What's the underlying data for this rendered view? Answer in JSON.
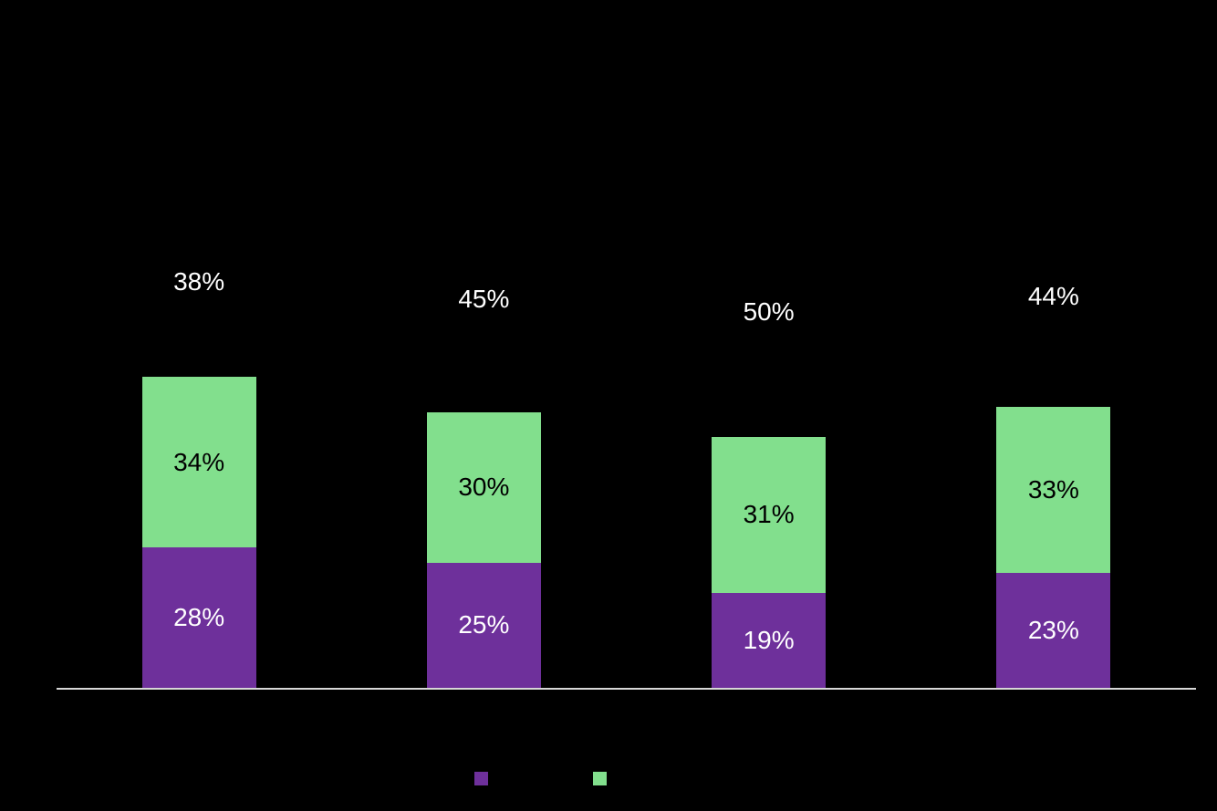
{
  "canvas": {
    "background_color": "#000000"
  },
  "chart_data": {
    "type": "bar",
    "subtype": "stacked-100-percent-column",
    "title": "",
    "xlabel": "",
    "ylabel": "",
    "categories": [
      "",
      "",
      "",
      ""
    ],
    "series": [
      {
        "name": "series-1-purple",
        "color": "#6E309B",
        "label_color": "#FFFFFF",
        "values": [
          28,
          25,
          19,
          23
        ],
        "labels": [
          "28%",
          "25%",
          "19%",
          "23%"
        ]
      },
      {
        "name": "series-2-green",
        "color": "#82DF8D",
        "label_color": "#000000",
        "values": [
          34,
          30,
          31,
          33
        ],
        "labels": [
          "34%",
          "30%",
          "31%",
          "33%"
        ]
      },
      {
        "name": "series-3-black-invisible",
        "color": "#000000",
        "label_color": "#FFFFFF",
        "values": [
          38,
          45,
          50,
          44
        ],
        "labels": [
          "38%",
          "45%",
          "50%",
          "44%"
        ]
      }
    ],
    "data_label_suffix": "%",
    "ylim": [
      0,
      100
    ],
    "grid": false,
    "axis_line_color": "#D8D8D8",
    "legend_position": "bottom",
    "legend_entries": [
      {
        "swatch_color": "#6E309B",
        "label": ""
      },
      {
        "swatch_color": "#82DF8D",
        "label": ""
      }
    ]
  }
}
